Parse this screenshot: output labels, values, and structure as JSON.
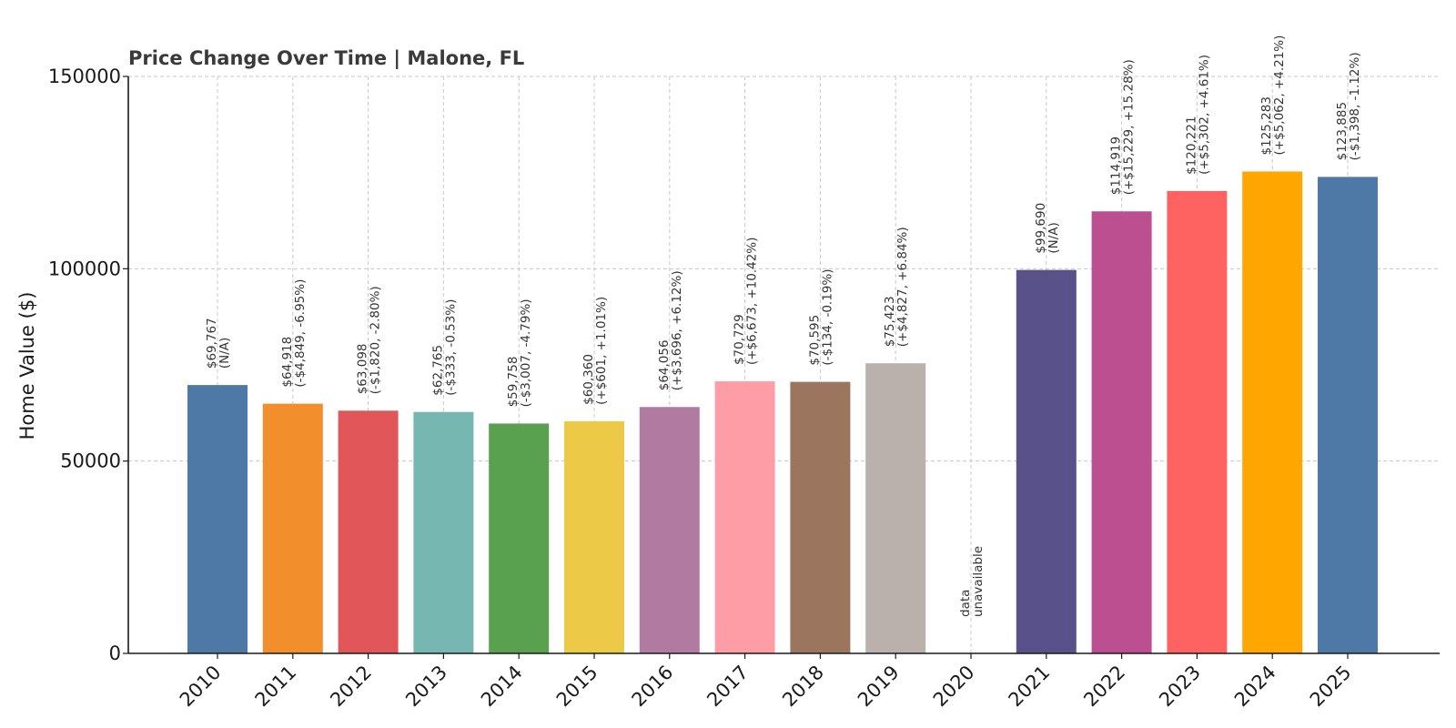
{
  "chart_data": {
    "type": "bar",
    "title": "Price Change Over Time | Malone, FL",
    "xlabel": "",
    "ylabel": "Home Value ($)",
    "ylim": [
      0,
      150000
    ],
    "yticks": [
      0,
      50000,
      100000,
      150000
    ],
    "ytick_labels": [
      "0",
      "50000",
      "100000",
      "150000"
    ],
    "grid": true,
    "categories": [
      "2010",
      "2011",
      "2012",
      "2013",
      "2014",
      "2015",
      "2016",
      "2017",
      "2018",
      "2019",
      "2020",
      "2021",
      "2022",
      "2023",
      "2024",
      "2025"
    ],
    "values": [
      69767,
      64918,
      63098,
      62765,
      59758,
      60360,
      64056,
      70729,
      70595,
      75423,
      null,
      99690,
      114919,
      120221,
      125283,
      123885
    ],
    "value_labels": [
      "$69,767",
      "$64,918",
      "$63,098",
      "$62,765",
      "$59,758",
      "$60,360",
      "$64,056",
      "$70,729",
      "$70,595",
      "$75,423",
      "",
      "$99,690",
      "$114,919",
      "$120,221",
      "$125,283",
      "$123,885"
    ],
    "change_labels": [
      "(N/A)",
      "(-$4,849, -6.95%)",
      "(-$1,820, -2.80%)",
      "(-$333, -0.53%)",
      "(-$3,007, -4.79%)",
      "(+$601, +1.01%)",
      "(+$3,696, +6.12%)",
      "(+$6,673, +10.42%)",
      "(-$134, -0.19%)",
      "(+$4,827, +6.84%)",
      "",
      "(N/A)",
      "(+$15,229, +15.28%)",
      "(+$5,302, +4.61%)",
      "(+$5,062, +4.21%)",
      "(-$1,398, -1.12%)"
    ],
    "missing_label_lines": [
      "data",
      "unavailable"
    ],
    "colors": [
      "#4e79a7",
      "#f28e2b",
      "#e15759",
      "#76b7b2",
      "#59a14f",
      "#edc948",
      "#b07aa1",
      "#ff9da7",
      "#9c755f",
      "#bab0ac",
      "#cccccc",
      "#59518a",
      "#bc4f8f",
      "#ff6361",
      "#ffa600",
      "#4e79a7"
    ]
  }
}
